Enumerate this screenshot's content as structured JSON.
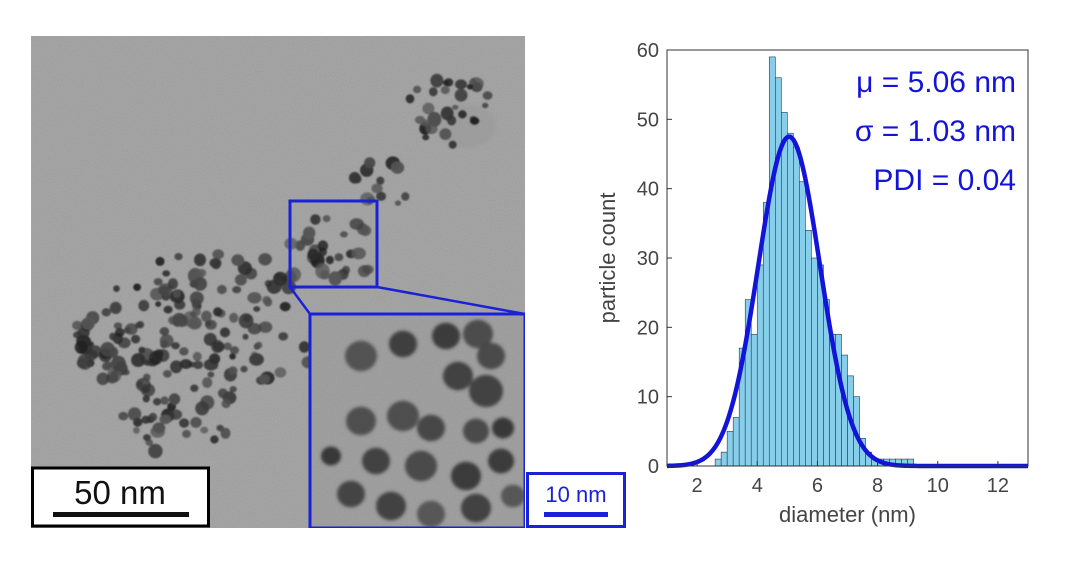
{
  "micrograph": {
    "scale_bar_main": "50 nm",
    "scale_bar_inset": "10 nm",
    "frame_color": "#1b22d6"
  },
  "chart_data": {
    "type": "bar",
    "xlabel": "diameter (nm)",
    "ylabel": "particle count",
    "xlim": [
      1,
      13
    ],
    "ylim": [
      0,
      60
    ],
    "xticks": [
      2,
      4,
      6,
      8,
      10,
      12
    ],
    "yticks": [
      0,
      10,
      20,
      30,
      40,
      50,
      60
    ],
    "grid": false,
    "bin_width": 0.2,
    "bin_starts": [
      2.4,
      2.6,
      2.8,
      3.0,
      3.2,
      3.4,
      3.6,
      3.8,
      4.0,
      4.2,
      4.4,
      4.6,
      4.8,
      5.0,
      5.2,
      5.4,
      5.6,
      5.8,
      6.0,
      6.2,
      6.4,
      6.6,
      6.8,
      7.0,
      7.2,
      7.4,
      7.6,
      7.8,
      8.0,
      8.2,
      8.4,
      8.6,
      8.8,
      9.0
    ],
    "values": [
      0,
      1,
      2,
      5,
      7,
      17,
      24,
      19,
      29,
      38,
      59,
      56,
      51,
      48,
      46,
      41,
      34,
      30,
      29,
      24,
      19,
      19,
      16,
      13,
      10,
      4,
      2,
      1,
      1,
      1,
      1,
      1,
      1,
      1
    ],
    "fit": {
      "type": "gaussian",
      "mu": 5.06,
      "sigma": 1.03,
      "peak": 47.5
    },
    "annotations": [
      "μ = 5.06 nm",
      "σ = 1.03 nm",
      "PDI = 0.04"
    ],
    "bar_color": "#87ceeb",
    "fit_color": "#1414d8"
  }
}
